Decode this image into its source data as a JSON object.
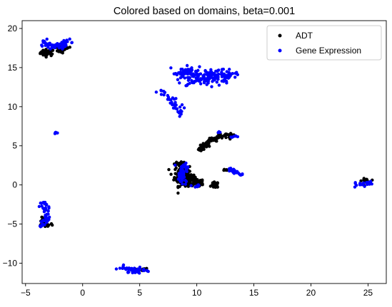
{
  "chart_data": {
    "type": "scatter",
    "title": "Colored based on domains, beta=0.001",
    "xlabel": "",
    "ylabel": "",
    "xlim": [
      -5.3,
      26.6
    ],
    "ylim": [
      -12.6,
      21.0
    ],
    "xticks": [
      -5,
      0,
      5,
      10,
      15,
      20,
      25
    ],
    "yticks": [
      -10,
      -5,
      0,
      5,
      10,
      15,
      20
    ],
    "xtick_labels": [
      "−5",
      "0",
      "5",
      "10",
      "15",
      "20",
      "25"
    ],
    "ytick_labels": [
      "−10",
      "−5",
      "0",
      "5",
      "10",
      "15",
      "20"
    ],
    "legend_position": "top-right",
    "grid": false,
    "series": [
      {
        "name": "ADT",
        "color": "#000000",
        "clusters": [
          {
            "shape": "blob",
            "cx": -3.1,
            "cy": 16.9,
            "rx": 0.5,
            "ry": 0.35,
            "n": 45
          },
          {
            "shape": "blob",
            "cx": -1.9,
            "cy": 17.3,
            "rx": 0.35,
            "ry": 0.35,
            "n": 25
          },
          {
            "shape": "blob",
            "cx": -1.5,
            "cy": 17.7,
            "rx": 0.3,
            "ry": 0.3,
            "n": 12
          },
          {
            "shape": "blob",
            "cx": -3.4,
            "cy": -4.7,
            "rx": 0.25,
            "ry": 0.45,
            "n": 25
          },
          {
            "shape": "blob",
            "cx": -3.0,
            "cy": -5.1,
            "rx": 0.3,
            "ry": 0.25,
            "n": 10
          },
          {
            "shape": "blob",
            "cx": 5.2,
            "cy": -10.8,
            "rx": 0.45,
            "ry": 0.15,
            "n": 18
          },
          {
            "shape": "blob",
            "cx": 8.7,
            "cy": 1.2,
            "rx": 0.55,
            "ry": 1.1,
            "n": 140
          },
          {
            "shape": "blob",
            "cx": 9.4,
            "cy": 0.6,
            "rx": 0.6,
            "ry": 0.5,
            "n": 60
          },
          {
            "shape": "blob",
            "cx": 8.6,
            "cy": 2.7,
            "rx": 0.45,
            "ry": 0.4,
            "n": 25
          },
          {
            "shape": "blob",
            "cx": 10.0,
            "cy": 0.3,
            "rx": 0.5,
            "ry": 0.35,
            "n": 40
          },
          {
            "shape": "blob",
            "cx": 11.6,
            "cy": 0.0,
            "rx": 0.25,
            "ry": 0.3,
            "n": 30
          },
          {
            "shape": "arc",
            "x0": 10.2,
            "y0": 4.4,
            "x1": 12.7,
            "y1": 6.5,
            "bend": 0.6,
            "n": 60,
            "jitter": 0.15
          },
          {
            "shape": "blob",
            "cx": 12.9,
            "cy": 6.3,
            "rx": 0.4,
            "ry": 0.3,
            "n": 15
          },
          {
            "shape": "blob",
            "cx": 24.8,
            "cy": 0.5,
            "rx": 0.3,
            "ry": 0.25,
            "n": 20
          },
          {
            "shape": "blob",
            "cx": 10.3,
            "cy": 0.1,
            "rx": 0.25,
            "ry": 0.2,
            "n": 8
          },
          {
            "shape": "blob",
            "cx": 12.5,
            "cy": 1.9,
            "rx": 0.3,
            "ry": 0.1,
            "n": 5
          },
          {
            "shape": "blob",
            "cx": 10.7,
            "cy": 5.0,
            "rx": 0.4,
            "ry": 0.1,
            "n": 10
          }
        ]
      },
      {
        "name": "Gene Expression",
        "color": "#0000ff",
        "clusters": [
          {
            "shape": "arc",
            "x0": -3.5,
            "y0": 18.3,
            "x1": -1.2,
            "y1": 18.2,
            "bend": -1.2,
            "n": 60,
            "jitter": 0.25
          },
          {
            "shape": "blob",
            "cx": -2.4,
            "cy": 6.7,
            "rx": 0.15,
            "ry": 0.15,
            "n": 6
          },
          {
            "shape": "arc",
            "x0": -3.6,
            "y0": -2.0,
            "x1": -3.6,
            "y1": -5.2,
            "bend": 1.0,
            "n": 45,
            "jitter": 0.2
          },
          {
            "shape": "arc",
            "x0": 3.3,
            "y0": -10.4,
            "x1": 5.7,
            "y1": -10.9,
            "bend": -0.6,
            "n": 45,
            "jitter": 0.2
          },
          {
            "shape": "arc",
            "x0": 8.3,
            "y0": 14.6,
            "x1": 13.3,
            "y1": 14.2,
            "bend": -0.8,
            "n": 120,
            "jitter": 0.4
          },
          {
            "shape": "blob",
            "cx": 10.6,
            "cy": 13.5,
            "rx": 1.6,
            "ry": 0.7,
            "n": 70
          },
          {
            "shape": "arc",
            "x0": 6.7,
            "y0": 12.2,
            "x1": 8.5,
            "y1": 9.2,
            "bend": 0.4,
            "n": 35,
            "jitter": 0.2
          },
          {
            "shape": "blob",
            "cx": 8.6,
            "cy": 1.2,
            "rx": 0.4,
            "ry": 0.9,
            "n": 40
          },
          {
            "shape": "blob",
            "cx": 9.0,
            "cy": 2.2,
            "rx": 0.35,
            "ry": 0.4,
            "n": 20
          },
          {
            "shape": "blob",
            "cx": 10.1,
            "cy": -0.2,
            "rx": 0.3,
            "ry": 0.2,
            "n": 8
          },
          {
            "shape": "arc",
            "x0": 12.8,
            "y0": 2.0,
            "x1": 14.1,
            "y1": 1.1,
            "bend": 0.2,
            "n": 25,
            "jitter": 0.1
          },
          {
            "shape": "blob",
            "cx": 13.3,
            "cy": 6.2,
            "rx": 0.3,
            "ry": 0.15,
            "n": 6
          },
          {
            "shape": "blob",
            "cx": 11.9,
            "cy": 6.8,
            "rx": 0.2,
            "ry": 0.1,
            "n": 3
          },
          {
            "shape": "arc",
            "x0": 23.9,
            "y0": 0.1,
            "x1": 25.2,
            "y1": 0.3,
            "bend": -0.2,
            "n": 25,
            "jitter": 0.12
          }
        ]
      }
    ]
  }
}
